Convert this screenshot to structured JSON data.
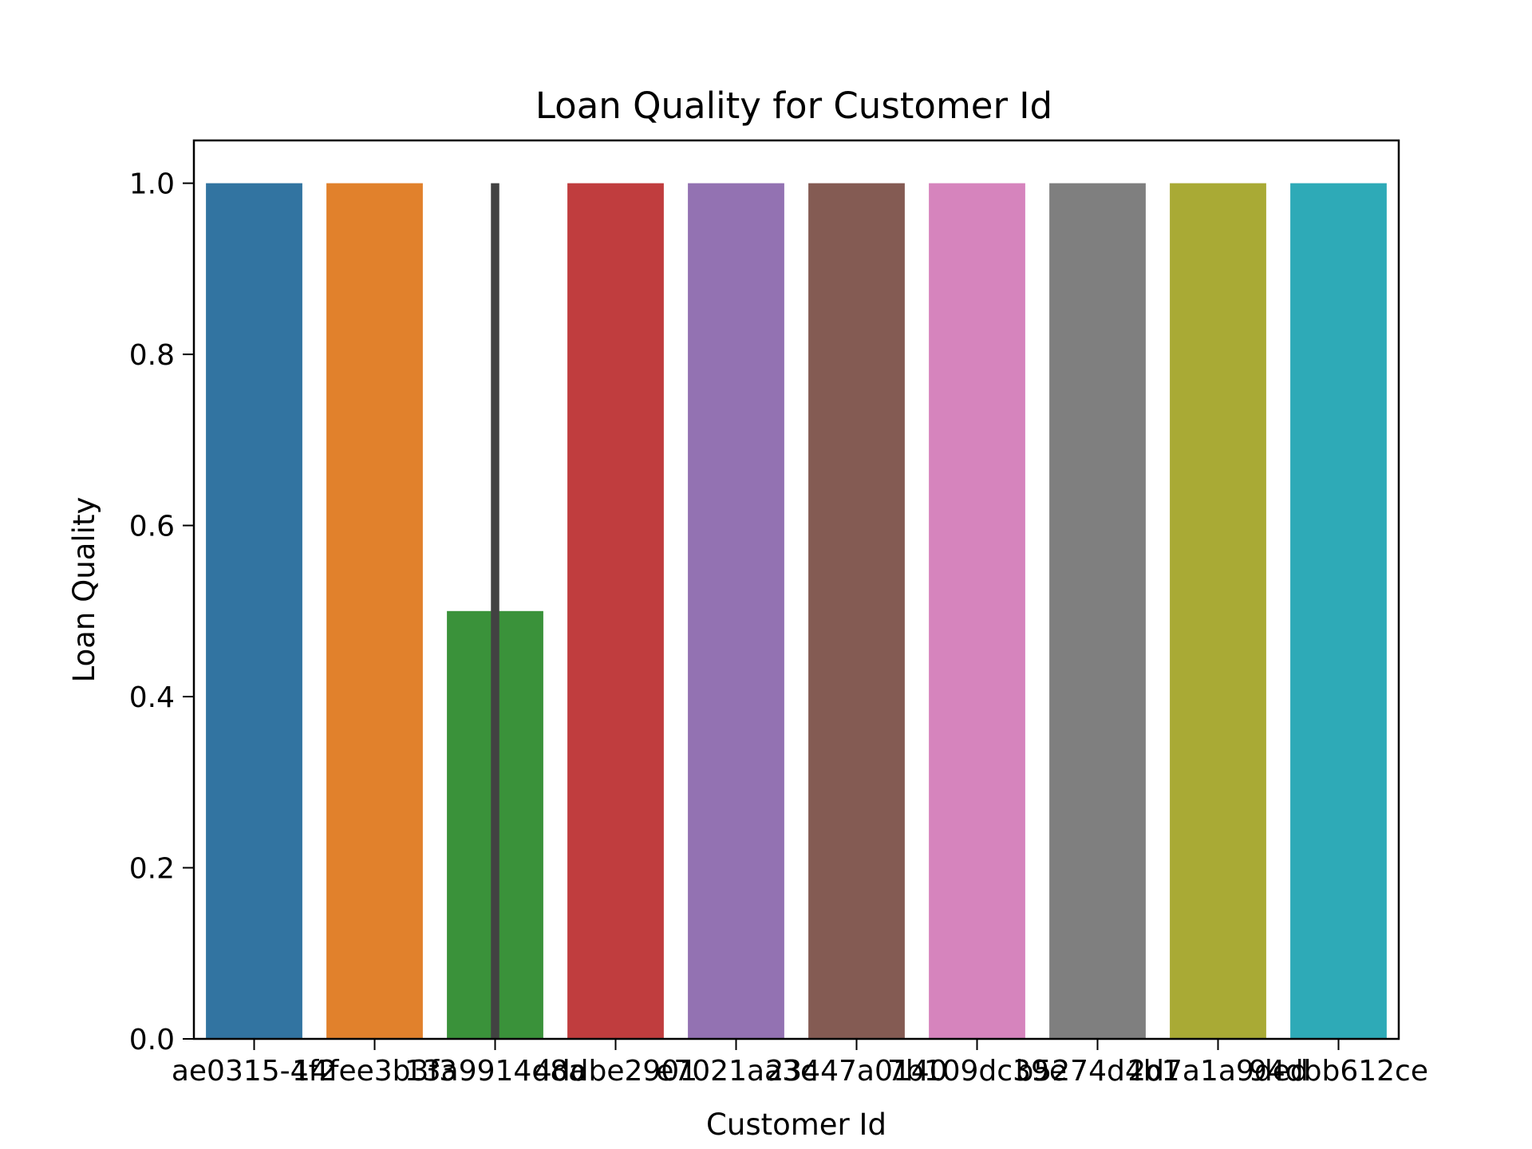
{
  "chart_data": {
    "type": "bar",
    "title": "Loan Quality for Customer Id",
    "xlabel": "Customer Id",
    "ylabel": "Loan Quality",
    "categories": [
      "ae0315-4f2",
      "14fee3b3f3",
      "13a9914d8a",
      "4ddbe2901",
      "e7021aa3c",
      "23447a0140",
      "7b109dc39e",
      "b5274d4b1",
      "2d7a1a9ded",
      "94dbb612ce"
    ],
    "values": [
      1.0,
      1.0,
      0.5,
      1.0,
      1.0,
      1.0,
      1.0,
      1.0,
      1.0,
      1.0
    ],
    "error_bars": [
      null,
      null,
      [
        0.0,
        1.0
      ],
      null,
      null,
      null,
      null,
      null,
      null,
      null
    ],
    "colors": [
      "#3274a1",
      "#e1812c",
      "#3a923a",
      "#c03d3e",
      "#9372b2",
      "#845b53",
      "#d684bd",
      "#7f7f7f",
      "#a9aa35",
      "#2eaab7"
    ],
    "error_bar_color": "#424242",
    "ylim": [
      0,
      1.05
    ],
    "yticks": [
      0.0,
      0.2,
      0.4,
      0.6,
      0.8,
      1.0
    ],
    "ytick_labels": [
      "0.0",
      "0.2",
      "0.4",
      "0.6",
      "0.8",
      "1.0"
    ],
    "grid": false,
    "legend": "none"
  }
}
